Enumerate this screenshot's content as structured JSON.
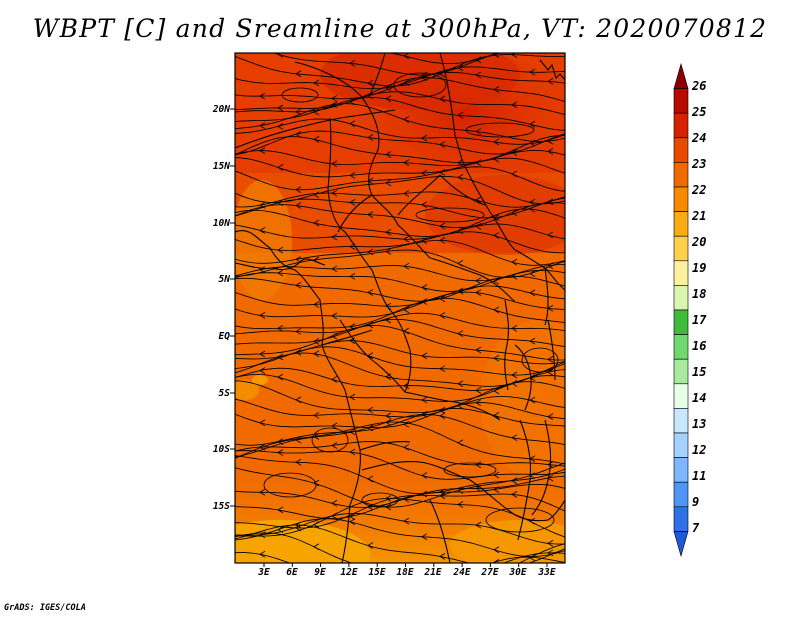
{
  "title": "WBPT [C] and Sreamline at 300hPa, VT: 2020070812",
  "credit": "GrADS: IGES/COLA",
  "map": {
    "lat_labels": [
      "20N",
      "15N",
      "10N",
      "5N",
      "EQ",
      "5S",
      "10S",
      "15S"
    ],
    "lon_labels": [
      "3E",
      "6E",
      "9E",
      "12E",
      "15E",
      "18E",
      "21E",
      "24E",
      "27E",
      "30E",
      "33E"
    ]
  },
  "colorbar": {
    "labels": [
      "26",
      "25",
      "24",
      "23",
      "22",
      "21",
      "20",
      "19",
      "18",
      "17",
      "16",
      "15",
      "14",
      "13",
      "12",
      "11",
      "9",
      "7"
    ],
    "colors": [
      "#8c0000",
      "#b40c00",
      "#d62200",
      "#e84a00",
      "#ef6a00",
      "#f68a00",
      "#fbab12",
      "#fdd14e",
      "#fff0a0",
      "#d9f5b0",
      "#3fbd3a",
      "#6fd86f",
      "#a8eaa0",
      "#e8ffe8",
      "#c8e8ff",
      "#a6d2ff",
      "#7cb7ff",
      "#4f95f6",
      "#2f71e8",
      "#1d59d8"
    ]
  }
}
